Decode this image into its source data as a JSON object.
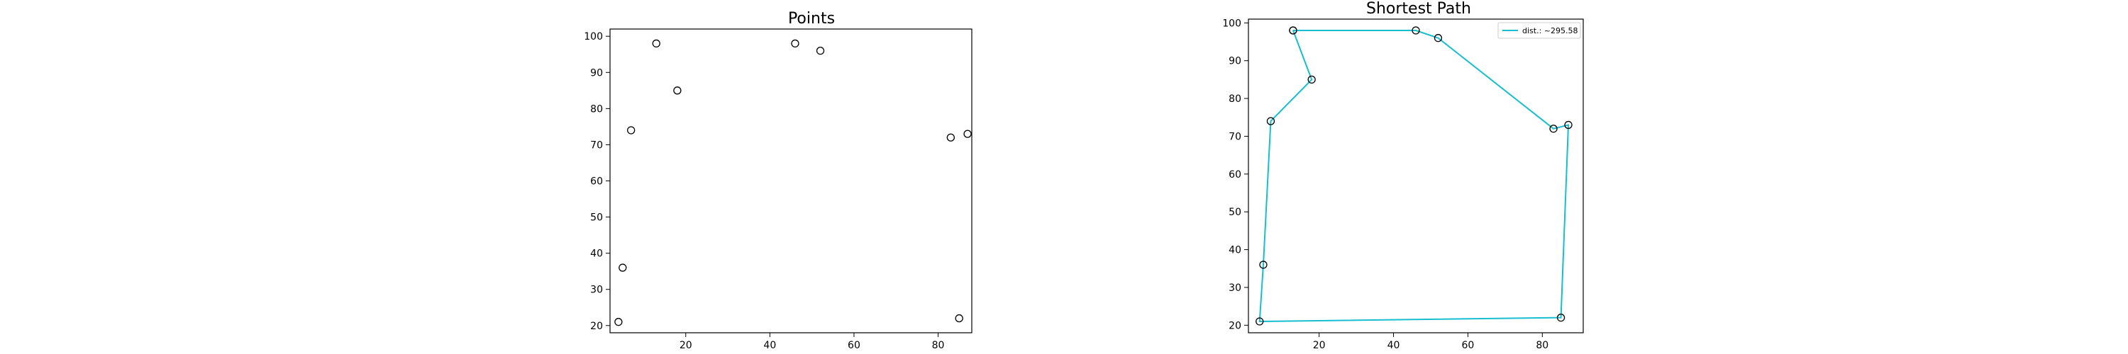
{
  "chart_data": [
    {
      "type": "scatter",
      "title": "Points",
      "xlabel": "",
      "ylabel": "",
      "xlim": [
        2,
        88
      ],
      "ylim": [
        18,
        102
      ],
      "xticks": [
        20,
        40,
        60,
        80
      ],
      "yticks": [
        20,
        30,
        40,
        50,
        60,
        70,
        80,
        90,
        100
      ],
      "grid": false,
      "points": [
        {
          "x": 13,
          "y": 98
        },
        {
          "x": 46,
          "y": 98
        },
        {
          "x": 52,
          "y": 96
        },
        {
          "x": 18,
          "y": 85
        },
        {
          "x": 7,
          "y": 74
        },
        {
          "x": 83,
          "y": 72
        },
        {
          "x": 87,
          "y": 73
        },
        {
          "x": 5,
          "y": 36
        },
        {
          "x": 4,
          "y": 21
        },
        {
          "x": 85,
          "y": 22
        }
      ]
    },
    {
      "type": "line",
      "title": "Shortest Path",
      "xlabel": "",
      "ylabel": "",
      "xlim": [
        1,
        91
      ],
      "ylim": [
        18,
        101
      ],
      "xticks": [
        20,
        40,
        60,
        80
      ],
      "yticks": [
        20,
        30,
        40,
        50,
        60,
        70,
        80,
        90,
        100
      ],
      "grid": false,
      "legend_position": "top-right",
      "series": [
        {
          "name": "dist.: ~295.58",
          "color": "#17becf",
          "x": [
            13,
            46,
            52,
            83,
            87,
            85,
            4,
            5,
            7,
            18,
            13
          ],
          "y": [
            98,
            98,
            96,
            72,
            73,
            22,
            21,
            36,
            74,
            85,
            98
          ]
        }
      ]
    }
  ]
}
